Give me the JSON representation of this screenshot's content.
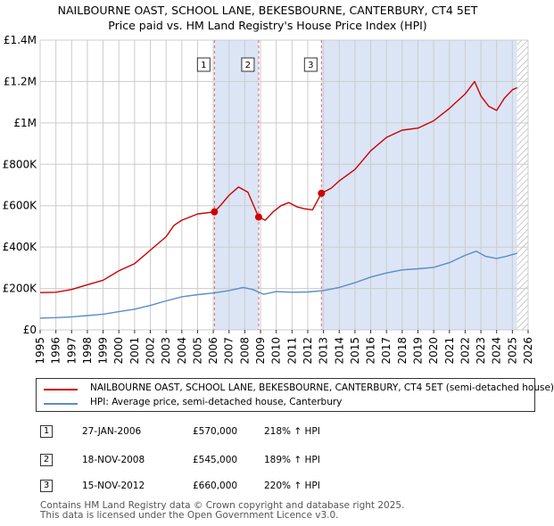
{
  "title": {
    "line1": "NAILBOURNE OAST, SCHOOL LANE, BEKESBOURNE, CANTERBURY, CT4 5ET",
    "line2": "Price paid vs. HM Land Registry's House Price Index (HPI)"
  },
  "colors": {
    "property": "#cc0000",
    "hpi": "#5b8cc8",
    "shade": "#dbe5f5",
    "grid": "#cccccc",
    "marker_line": "#e06666"
  },
  "chart_data": {
    "type": "line",
    "x_range": [
      1995,
      2026
    ],
    "ylim": [
      0,
      1400000
    ],
    "y_ticks": [
      {
        "value": 0,
        "label": "£0"
      },
      {
        "value": 200000,
        "label": "£200K"
      },
      {
        "value": 400000,
        "label": "£400K"
      },
      {
        "value": 600000,
        "label": "£600K"
      },
      {
        "value": 800000,
        "label": "£800K"
      },
      {
        "value": 1000000,
        "label": "£1M"
      },
      {
        "value": 1200000,
        "label": "£1.2M"
      },
      {
        "value": 1400000,
        "label": "£1.4M"
      }
    ],
    "x_ticks": [
      "1995",
      "1996",
      "1997",
      "1998",
      "1999",
      "2000",
      "2001",
      "2002",
      "2003",
      "2004",
      "2005",
      "2006",
      "2007",
      "2008",
      "2009",
      "2010",
      "2011",
      "2012",
      "2013",
      "2014",
      "2015",
      "2016",
      "2017",
      "2018",
      "2019",
      "2020",
      "2021",
      "2022",
      "2023",
      "2024",
      "2025",
      "2026"
    ],
    "grid": true,
    "shaded_ranges": [
      [
        2006.07,
        2008.88
      ],
      [
        2012.87,
        2025.3
      ]
    ],
    "hatched_from": 2025.3,
    "series": [
      {
        "name": "NAILBOURNE OAST, SCHOOL LANE, BEKESBOURNE, CANTERBURY, CT4 5ET (semi-detached house)",
        "color": "#cc0000",
        "points": [
          [
            1995.0,
            180000
          ],
          [
            1996.0,
            182000
          ],
          [
            1997.0,
            195000
          ],
          [
            1998.0,
            218000
          ],
          [
            1999.0,
            240000
          ],
          [
            2000.0,
            285000
          ],
          [
            2001.0,
            320000
          ],
          [
            2002.0,
            385000
          ],
          [
            2003.0,
            450000
          ],
          [
            2003.5,
            505000
          ],
          [
            2004.0,
            530000
          ],
          [
            2005.0,
            560000
          ],
          [
            2006.07,
            570000
          ],
          [
            2006.5,
            605000
          ],
          [
            2007.0,
            650000
          ],
          [
            2007.6,
            690000
          ],
          [
            2008.2,
            665000
          ],
          [
            2008.88,
            545000
          ],
          [
            2009.3,
            530000
          ],
          [
            2009.8,
            570000
          ],
          [
            2010.3,
            600000
          ],
          [
            2010.8,
            615000
          ],
          [
            2011.3,
            595000
          ],
          [
            2011.8,
            585000
          ],
          [
            2012.3,
            580000
          ],
          [
            2012.87,
            660000
          ],
          [
            2013.5,
            685000
          ],
          [
            2014.0,
            720000
          ],
          [
            2015.0,
            775000
          ],
          [
            2016.0,
            865000
          ],
          [
            2017.0,
            930000
          ],
          [
            2018.0,
            965000
          ],
          [
            2019.0,
            975000
          ],
          [
            2020.0,
            1010000
          ],
          [
            2021.0,
            1070000
          ],
          [
            2022.0,
            1140000
          ],
          [
            2022.6,
            1200000
          ],
          [
            2023.0,
            1130000
          ],
          [
            2023.5,
            1080000
          ],
          [
            2024.0,
            1060000
          ],
          [
            2024.5,
            1120000
          ],
          [
            2025.0,
            1160000
          ],
          [
            2025.3,
            1170000
          ]
        ]
      },
      {
        "name": "HPI: Average price, semi-detached house, Canterbury",
        "color": "#5b8cc8",
        "points": [
          [
            1995.0,
            57000
          ],
          [
            1996.0,
            59000
          ],
          [
            1997.0,
            63000
          ],
          [
            1998.0,
            69000
          ],
          [
            1999.0,
            76000
          ],
          [
            2000.0,
            88000
          ],
          [
            2001.0,
            100000
          ],
          [
            2002.0,
            118000
          ],
          [
            2003.0,
            140000
          ],
          [
            2004.0,
            160000
          ],
          [
            2005.0,
            170000
          ],
          [
            2006.0,
            178000
          ],
          [
            2007.0,
            190000
          ],
          [
            2007.9,
            205000
          ],
          [
            2008.5,
            195000
          ],
          [
            2009.2,
            172000
          ],
          [
            2010.0,
            185000
          ],
          [
            2011.0,
            182000
          ],
          [
            2012.0,
            183000
          ],
          [
            2013.0,
            190000
          ],
          [
            2014.0,
            205000
          ],
          [
            2015.0,
            228000
          ],
          [
            2016.0,
            255000
          ],
          [
            2017.0,
            275000
          ],
          [
            2018.0,
            290000
          ],
          [
            2019.0,
            295000
          ],
          [
            2020.0,
            302000
          ],
          [
            2021.0,
            325000
          ],
          [
            2022.0,
            360000
          ],
          [
            2022.7,
            380000
          ],
          [
            2023.3,
            355000
          ],
          [
            2024.0,
            345000
          ],
          [
            2024.6,
            355000
          ],
          [
            2025.3,
            370000
          ]
        ]
      }
    ],
    "sales": [
      {
        "id": "1",
        "x": 2006.07,
        "value": 570000
      },
      {
        "id": "2",
        "x": 2008.88,
        "value": 545000
      },
      {
        "id": "3",
        "x": 2012.87,
        "value": 660000
      }
    ]
  },
  "legend": {
    "property_label": "NAILBOURNE OAST, SCHOOL LANE, BEKESBOURNE, CANTERBURY, CT4 5ET (semi-detached house)",
    "hpi_label": "HPI: Average price, semi-detached house, Canterbury"
  },
  "transactions": [
    {
      "id": "1",
      "date": "27-JAN-2006",
      "price": "£570,000",
      "hpi": "218% ↑ HPI"
    },
    {
      "id": "2",
      "date": "18-NOV-2008",
      "price": "£545,000",
      "hpi": "189% ↑ HPI"
    },
    {
      "id": "3",
      "date": "15-NOV-2012",
      "price": "£660,000",
      "hpi": "220% ↑ HPI"
    }
  ],
  "footer": {
    "line1": "Contains HM Land Registry data © Crown copyright and database right 2025.",
    "line2": "This data is licensed under the Open Government Licence v3.0."
  }
}
